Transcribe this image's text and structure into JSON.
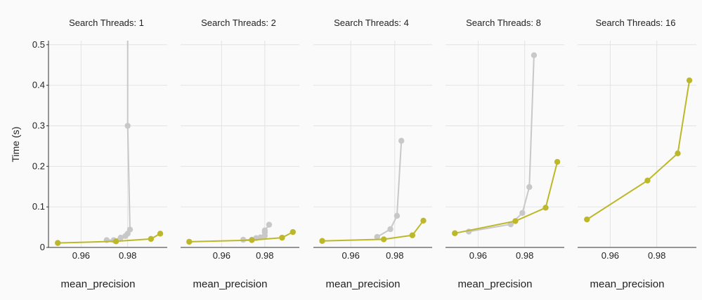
{
  "chart_data": {
    "type": "line",
    "ylabel": "Time (s)",
    "xlabel": "mean_precision",
    "ylim": [
      0,
      0.51
    ],
    "yticks": [
      0,
      0.1,
      0.2,
      0.3,
      0.4,
      0.5
    ],
    "ytick_labels": [
      "0",
      "0.1",
      "0.2",
      "0.3",
      "0.4",
      "0.5"
    ],
    "grid": true,
    "colors": {
      "primary": "#bdb829",
      "secondary": "#c8c8c8",
      "grid": "#e3e3e3",
      "axis": "#333333"
    },
    "panels": [
      {
        "title": "Search Threads: 1",
        "xlim": [
          0.946,
          0.997
        ],
        "xticks": [
          0.96,
          0.98
        ],
        "xtick_labels": [
          "0.96",
          "0.98"
        ],
        "series": [
          {
            "x": [
              0.971,
              0.974,
              0.977,
              0.979,
              0.98,
              0.981,
              0.98,
              0.98
            ],
            "y": [
              0.018,
              0.018,
              0.024,
              0.028,
              0.034,
              0.044,
              0.3,
              0.51
            ],
            "role": "secondary"
          },
          {
            "x": [
              0.95,
              0.975,
              0.99,
              0.994
            ],
            "y": [
              0.011,
              0.015,
              0.021,
              0.034
            ],
            "role": "primary"
          }
        ]
      },
      {
        "title": "Search Threads: 2",
        "xlim": [
          0.941,
          0.996
        ],
        "xticks": [
          0.96,
          0.98
        ],
        "xtick_labels": [
          "0.96",
          "0.98"
        ],
        "series": [
          {
            "x": [
              0.97,
              0.974,
              0.976,
              0.978,
              0.98,
              0.98,
              0.98,
              0.982
            ],
            "y": [
              0.019,
              0.019,
              0.023,
              0.025,
              0.029,
              0.037,
              0.042,
              0.056
            ],
            "role": "secondary"
          },
          {
            "x": [
              0.945,
              0.974,
              0.988,
              0.993
            ],
            "y": [
              0.014,
              0.018,
              0.024,
              0.038
            ],
            "role": "primary"
          }
        ]
      },
      {
        "title": "Search Threads: 4",
        "xlim": [
          0.943,
          0.997
        ],
        "xticks": [
          0.96,
          0.98
        ],
        "xtick_labels": [
          "0.96",
          "0.98"
        ],
        "series": [
          {
            "x": [
              0.972,
              0.978,
              0.981,
              0.983
            ],
            "y": [
              0.026,
              0.045,
              0.078,
              0.263
            ],
            "role": "secondary"
          },
          {
            "x": [
              0.947,
              0.975,
              0.988,
              0.993
            ],
            "y": [
              0.016,
              0.02,
              0.03,
              0.066
            ],
            "role": "primary"
          }
        ]
      },
      {
        "title": "Search Threads: 8",
        "xlim": [
          0.946,
          0.997
        ],
        "xticks": [
          0.96,
          0.98
        ],
        "xtick_labels": [
          "0.96",
          "0.98"
        ],
        "series": [
          {
            "x": [
              0.956,
              0.974,
              0.979,
              0.982,
              0.984
            ],
            "y": [
              0.039,
              0.057,
              0.085,
              0.149,
              0.474
            ],
            "role": "secondary"
          },
          {
            "x": [
              0.95,
              0.976,
              0.989,
              0.994
            ],
            "y": [
              0.035,
              0.065,
              0.098,
              0.211
            ],
            "role": "primary"
          }
        ]
      },
      {
        "title": "Search Threads: 16",
        "xlim": [
          0.946,
          0.997
        ],
        "xticks": [
          0.96,
          0.98
        ],
        "xtick_labels": [
          "0.96",
          "0.98"
        ],
        "series": [
          {
            "x": [
              0.95,
              0.976,
              0.989,
              0.994
            ],
            "y": [
              0.069,
              0.165,
              0.232,
              0.412
            ],
            "role": "primary"
          }
        ]
      }
    ]
  }
}
